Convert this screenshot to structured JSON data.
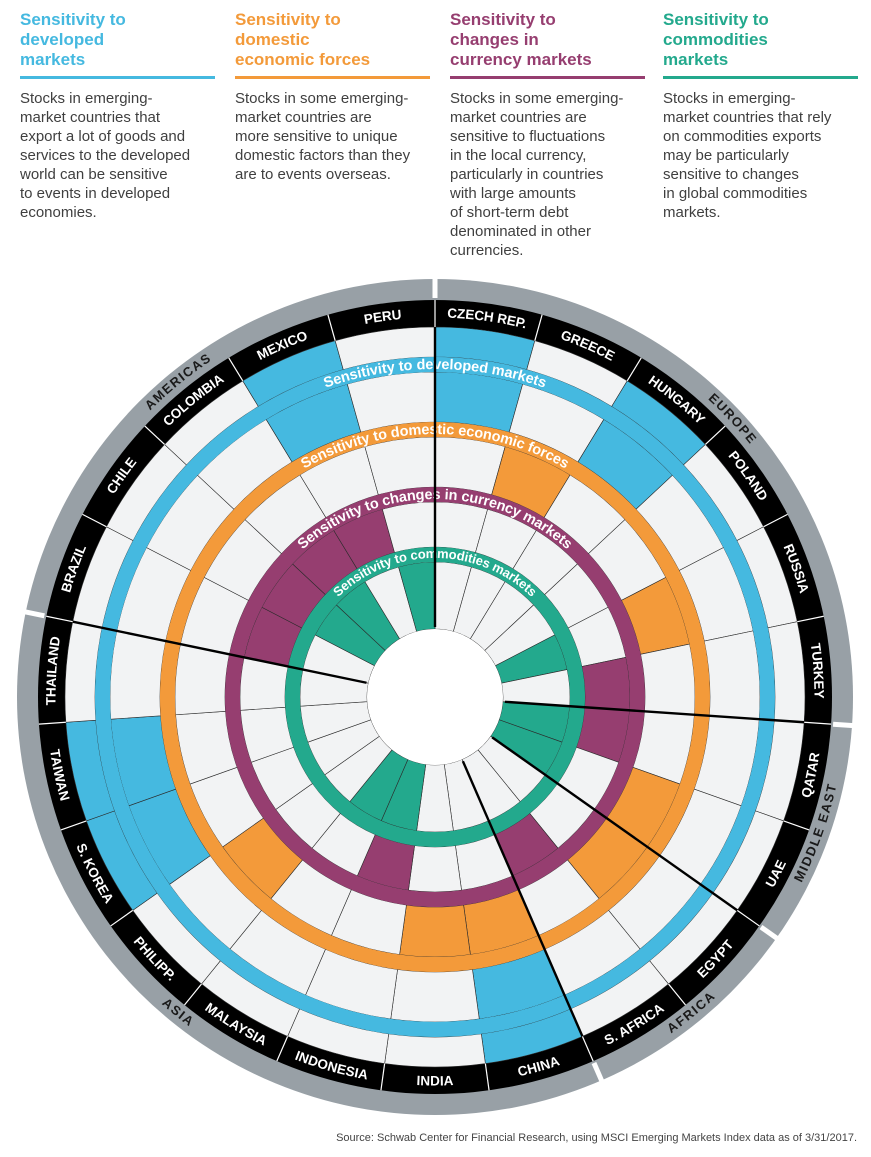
{
  "legend": [
    {
      "title_lines": [
        "Sensitivity to",
        "developed",
        "markets"
      ],
      "color": "#45b9e0",
      "text_lines": [
        "Stocks in emerging-",
        "market countries that",
        "export a lot of goods and",
        "services to the developed",
        "world can be sensitive",
        "to events in developed",
        "economies."
      ]
    },
    {
      "title_lines": [
        "Sensitivity to",
        "domestic",
        "economic forces"
      ],
      "color": "#f39a3a",
      "text_lines": [
        "Stocks in some emerging-",
        "market countries are",
        "more sensitive to unique",
        "domestic factors than they",
        "are to events overseas."
      ]
    },
    {
      "title_lines": [
        "Sensitivity to",
        "changes in",
        "currency markets"
      ],
      "color": "#963e70",
      "text_lines": [
        "Stocks in some emerging-",
        "market countries are",
        "sensitive to fluctuations",
        "in the local currency,",
        "particularly in countries",
        "with large amounts",
        "of short-term debt",
        "denominated in other",
        "currencies."
      ]
    },
    {
      "title_lines": [
        "Sensitivity to",
        "commodities",
        "markets"
      ],
      "color": "#23a98d",
      "text_lines": [
        "Stocks in emerging-",
        "market countries that rely",
        "on commodities exports",
        "may be particularly",
        "sensitive to changes",
        "in global commodities",
        "markets."
      ]
    }
  ],
  "ring_labels": [
    "Sensitivity to developed markets",
    "Sensitivity to domestic economic forces",
    "Sensitivity to changes in currency markets",
    "Sensitivity to commodities markets"
  ],
  "ring_colors": [
    "#45b9e0",
    "#f39a3a",
    "#963e70",
    "#23a98d"
  ],
  "countries": [
    "CZECH REP.",
    "GREECE",
    "HUNGARY",
    "POLAND",
    "RUSSIA",
    "TURKEY",
    "QATAR",
    "UAE",
    "EGYPT",
    "S. AFRICA",
    "CHINA",
    "INDIA",
    "INDONESIA",
    "MALAYSIA",
    "PHILIPP.",
    "S. KOREA",
    "TAIWAN",
    "THAILAND",
    "BRAZIL",
    "CHILE",
    "COLOMBIA",
    "MEXICO",
    "PERU"
  ],
  "regions": [
    {
      "name": "EUROPE",
      "countries": [
        "CZECH REP.",
        "GREECE",
        "HUNGARY",
        "POLAND",
        "RUSSIA",
        "TURKEY"
      ]
    },
    {
      "name": "MIDDLE EAST",
      "countries": [
        "QATAR",
        "UAE"
      ]
    },
    {
      "name": "AFRICA",
      "countries": [
        "EGYPT",
        "S. AFRICA"
      ]
    },
    {
      "name": "ASIA",
      "countries": [
        "CHINA",
        "INDIA",
        "INDONESIA",
        "MALAYSIA",
        "PHILIPP.",
        "S. KOREA",
        "TAIWAN",
        "THAILAND"
      ]
    },
    {
      "name": "AMERICAS",
      "countries": [
        "BRAZIL",
        "CHILE",
        "COLOMBIA",
        "MEXICO",
        "PERU"
      ]
    }
  ],
  "sensitive": {
    "developed": [
      "CZECH REP.",
      "HUNGARY",
      "CHINA",
      "S. KOREA",
      "TAIWAN",
      "MEXICO"
    ],
    "domestic": [
      "GREECE",
      "RUSSIA",
      "UAE",
      "EGYPT",
      "CHINA",
      "INDIA",
      "PHILIPP."
    ],
    "currency": [
      "TURKEY",
      "QATAR",
      "S. AFRICA",
      "INDONESIA",
      "BRAZIL",
      "CHILE",
      "COLOMBIA",
      "MEXICO"
    ],
    "commodities": [
      "RUSSIA",
      "QATAR",
      "UAE",
      "INDONESIA",
      "MALAYSIA",
      "CHILE",
      "COLOMBIA",
      "PERU"
    ]
  },
  "source": "Source: Schwab Center for Financial Research, using MSCI Emerging Markets Index data as of 3/31/2017."
}
